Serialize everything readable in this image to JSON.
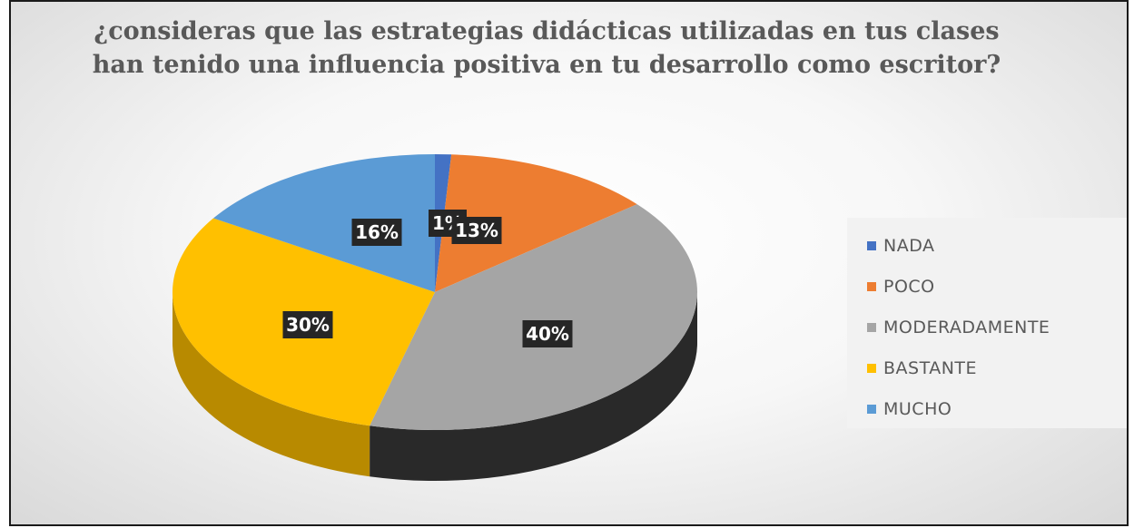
{
  "chart_data": {
    "type": "pie",
    "title": "¿consideras que las estrategias didácticas utilizadas en tus clases han tenido una influencia positiva en tu desarrollo como escritor?",
    "categories": [
      "NADA",
      "POCO",
      "MODERADAMENTE",
      "BASTANTE",
      "MUCHO"
    ],
    "values": [
      1,
      13,
      40,
      30,
      16
    ],
    "labels": [
      "1%",
      "13%",
      "40%",
      "30%",
      "16%"
    ],
    "colors": [
      "#4472c4",
      "#ed7d31",
      "#a5a5a5",
      "#ffc000",
      "#5b9bd5"
    ],
    "legend": "right",
    "style": "3d"
  }
}
